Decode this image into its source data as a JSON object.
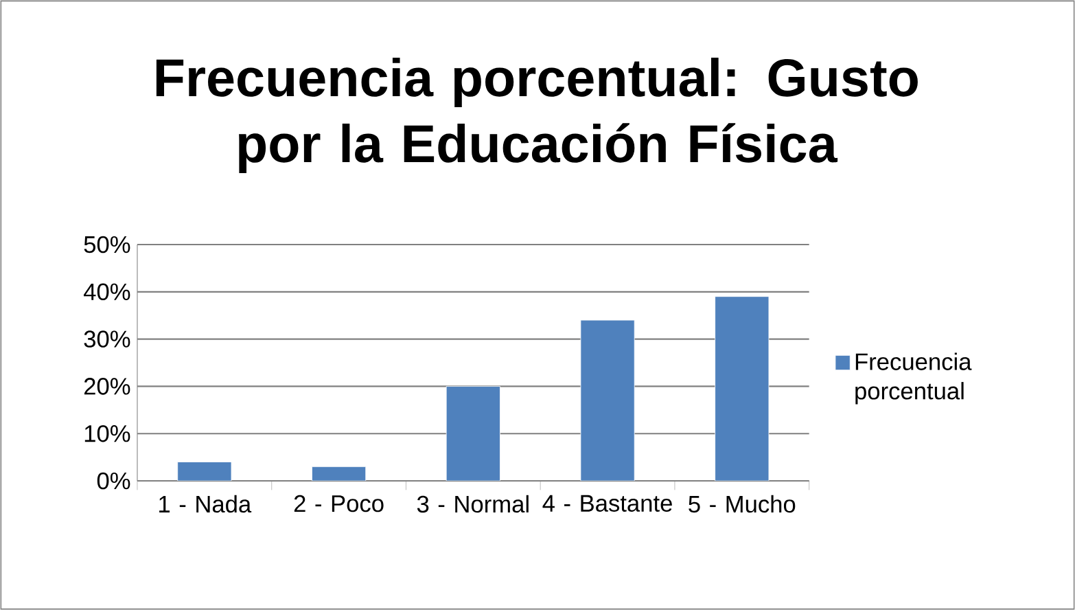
{
  "chart_data": {
    "type": "bar",
    "title": "Frecuencia porcentual: Gusto por la Educación Física",
    "categories": [
      "1 - Nada",
      "2 - Poco",
      "3 - Normal",
      "4 - Bastante",
      "5 - Mucho"
    ],
    "series": [
      {
        "name": "Frecuencia porcentual",
        "color": "#4f81bd",
        "values": [
          4,
          3,
          20,
          34,
          39
        ]
      }
    ],
    "ylim": [
      0,
      50
    ],
    "yticks": [
      {
        "value": 0,
        "label": "0%"
      },
      {
        "value": 10,
        "label": "10%"
      },
      {
        "value": 20,
        "label": "20%"
      },
      {
        "value": 30,
        "label": "30%"
      },
      {
        "value": 40,
        "label": "40%"
      },
      {
        "value": 50,
        "label": "50%"
      }
    ],
    "grid": "y",
    "legend": "right"
  }
}
